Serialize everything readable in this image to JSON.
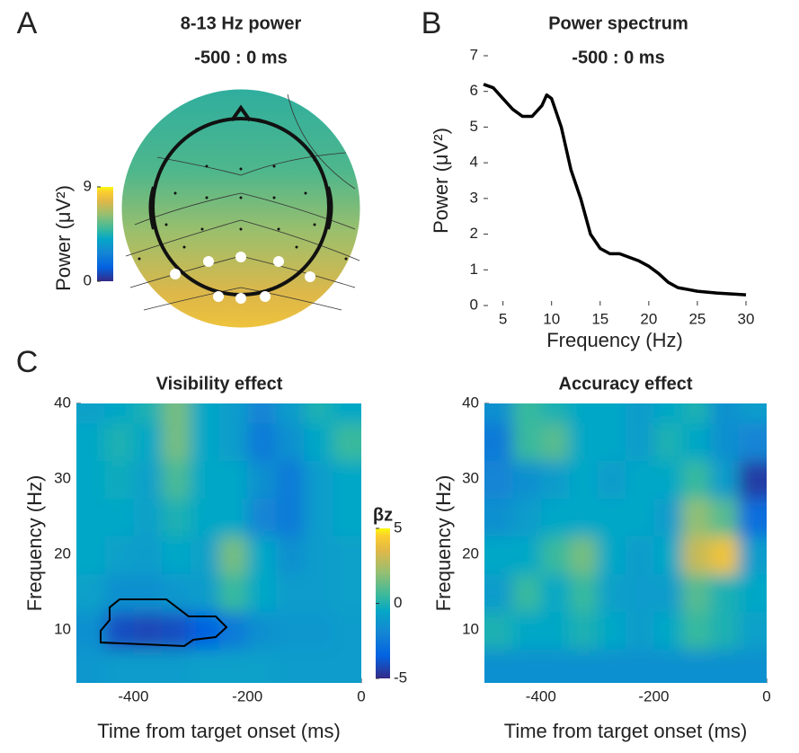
{
  "chart_data": [
    {
      "type": "topoplot",
      "panel_label": "A",
      "title": "8-13 Hz power",
      "subtitle": "-500 : 0 ms",
      "colorbar": {
        "label": "Power (μV²)",
        "lim": [
          0,
          9
        ],
        "ticks": [
          0,
          9
        ]
      }
    },
    {
      "type": "line",
      "panel_label": "B",
      "title": "Power spectrum",
      "subtitle": "-500 : 0 ms",
      "x_label": "Frequency (Hz)",
      "y_label": "Power (μV²)",
      "x": [
        3,
        4,
        5,
        6,
        7,
        8,
        9,
        9.5,
        10,
        11,
        12,
        13,
        14,
        15,
        16,
        17,
        18,
        19,
        20,
        21,
        22,
        23,
        25,
        27,
        30
      ],
      "values": [
        6.2,
        6.1,
        5.8,
        5.5,
        5.3,
        5.3,
        5.6,
        5.9,
        5.8,
        5.0,
        3.8,
        3.0,
        2.0,
        1.6,
        1.45,
        1.45,
        1.35,
        1.25,
        1.1,
        0.9,
        0.65,
        0.5,
        0.4,
        0.35,
        0.3
      ],
      "color": "#000000",
      "xlim": [
        3,
        30
      ],
      "ylim": [
        0,
        7
      ],
      "xticks": [
        5,
        10,
        15,
        20,
        25,
        30
      ],
      "yticks": [
        0,
        1,
        2,
        3,
        4,
        5,
        6,
        7
      ]
    },
    {
      "type": "heatmap",
      "panel_label": "C",
      "title": "Visibility effect",
      "x_label": "Time from target onset (ms)",
      "y_label": "Frequency (Hz)",
      "xlim": [
        -500,
        0
      ],
      "ylim": [
        3,
        40
      ],
      "xticks": [
        -400,
        -200,
        0
      ],
      "yticks": [
        10,
        20,
        30,
        40
      ],
      "colorbar": {
        "label": "βz",
        "lim": [
          -5,
          5
        ],
        "ticks": [
          -5,
          0,
          5
        ]
      },
      "x": [
        -475,
        -425,
        -375,
        -325,
        -275,
        -225,
        -175,
        -125,
        -75,
        -25
      ],
      "y": [
        5,
        10,
        15,
        20,
        25,
        30,
        35,
        40
      ],
      "z": [
        [
          -1.2,
          -1,
          -1,
          -1,
          -0.8,
          -0.8,
          -0.8,
          -1,
          -1,
          -1
        ],
        [
          -1.5,
          -4,
          -4.2,
          -4,
          -3.5,
          -2.5,
          -1.5,
          -1.2,
          -1.2,
          -1
        ],
        [
          -0.8,
          -1.5,
          -1.5,
          -1.2,
          -1,
          0.5,
          -0.5,
          -1,
          -1,
          -0.8
        ],
        [
          -0.5,
          -0.8,
          -1,
          -0.5,
          -0.8,
          1.5,
          -0.5,
          -1.5,
          -1,
          -0.8
        ],
        [
          -0.5,
          -0.5,
          -0.8,
          0,
          -0.5,
          -0.5,
          -2,
          -2.5,
          -1,
          -0.5
        ],
        [
          -0.5,
          -0.3,
          -0.8,
          0.8,
          -0.5,
          -0.5,
          -1.5,
          -2.5,
          -1,
          -0.5
        ],
        [
          -0.5,
          0,
          -0.5,
          1.5,
          -0.5,
          -1,
          -2.5,
          -1.5,
          -0.5,
          0.5
        ],
        [
          -0.8,
          -0.5,
          0,
          1.5,
          -0.5,
          -1,
          -2,
          -1,
          0,
          -0.5
        ]
      ]
    },
    {
      "type": "heatmap",
      "title": "Accuracy effect",
      "x_label": "Time from target onset (ms)",
      "y_label": "Frequency (Hz)",
      "xlim": [
        -500,
        0
      ],
      "ylim": [
        3,
        40
      ],
      "xticks": [
        -400,
        -200,
        0
      ],
      "yticks": [
        10,
        20,
        30,
        40
      ],
      "x": [
        -475,
        -425,
        -375,
        -325,
        -275,
        -225,
        -175,
        -125,
        -75,
        -25
      ],
      "y": [
        5,
        10,
        15,
        20,
        25,
        30,
        35,
        40
      ],
      "z": [
        [
          -1.5,
          -1.5,
          -1.5,
          -1.5,
          -1.5,
          -1.5,
          -1.5,
          -1.5,
          -1.5,
          -1.5
        ],
        [
          0,
          -0.5,
          -0.5,
          0,
          -0.5,
          -1,
          -0.5,
          0.5,
          0,
          -0.8
        ],
        [
          -1,
          0.5,
          -0.5,
          0.5,
          -0.8,
          -1,
          -1,
          1,
          0,
          -0.5
        ],
        [
          -0.5,
          -0.5,
          0.5,
          1.5,
          -0.5,
          -1,
          -0.5,
          3,
          4,
          -1
        ],
        [
          -1.5,
          -1,
          -0.5,
          -0.5,
          -0.5,
          -0.5,
          -1,
          2,
          1,
          -3
        ],
        [
          -2,
          -1.5,
          -1,
          -0.5,
          -1,
          -0.5,
          -0.5,
          0.5,
          -1,
          -4.5
        ],
        [
          -2.5,
          0.5,
          1,
          -0.5,
          -0.5,
          -1,
          0,
          -0.5,
          -1.5,
          -2
        ],
        [
          -1.5,
          0.5,
          0,
          -0.5,
          -0.5,
          -1,
          -0.5,
          0,
          -1.5,
          -1
        ]
      ]
    }
  ]
}
